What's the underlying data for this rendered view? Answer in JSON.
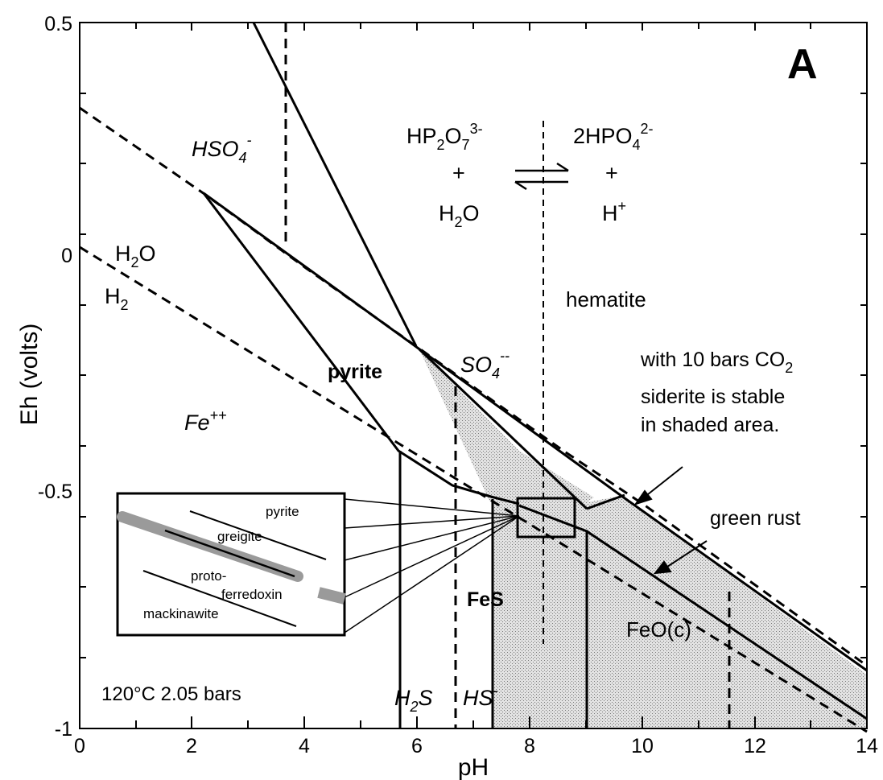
{
  "panel_letter": "A",
  "axes": {
    "x_label": "pH",
    "y_label": "Eh (volts)",
    "x_ticks": [
      "0",
      "2",
      "4",
      "6",
      "8",
      "10",
      "12",
      "14"
    ],
    "y_ticks": [
      "0.5",
      "0",
      "-0.5",
      "-1"
    ]
  },
  "species": {
    "hso4": "HSO",
    "hso4_sub": "4",
    "hso4_sup": "-",
    "so4": "SO",
    "so4_sub": "4",
    "so4_sup": "--",
    "h2o_a": "H",
    "h2o_sub": "2",
    "h2o_b": "O",
    "h2_a": "H",
    "h2_sub": "2",
    "fe": "Fe",
    "fe_sup": "++",
    "pyrite": "pyrite",
    "hematite": "hematite",
    "fes": "FeS",
    "feo": "FeO(c)",
    "h2s_a": "H",
    "h2s_sub": "2",
    "h2s_b": "S",
    "hs": "HS",
    "hs_sup": "-"
  },
  "equilibrium": {
    "left_a": "HP",
    "left_sub1": "2",
    "left_b": "O",
    "left_sub2": "7",
    "left_sup": "3-",
    "left_plus": "+",
    "left_water_a": "H",
    "left_water_sub": "2",
    "left_water_b": "O",
    "right_a": "2HPO",
    "right_sub": "4",
    "right_sup": "2-",
    "right_plus": "+",
    "right_h": "H",
    "right_h_sup": "+"
  },
  "annotations": {
    "co2_line1_a": "with 10 bars CO",
    "co2_line1_sub": "2",
    "co2_line2": "siderite is stable",
    "co2_line3": "in shaded area.",
    "green_rust": "green rust",
    "conditions": "120°C  2.05 bars"
  },
  "inset": {
    "pyrite": "pyrite",
    "greigite": "greigite",
    "proto": "proto-",
    "ferredoxin": "ferredoxin",
    "mackinawite": "mackinawite"
  },
  "chart_data": {
    "type": "phase-diagram",
    "xlim": [
      0,
      14
    ],
    "ylim": [
      -1,
      0.5
    ],
    "solid_lines": [
      {
        "name": "hematite-left",
        "x": [
          3.1,
          6.0
        ],
        "y": [
          0.5,
          -0.19
        ]
      },
      {
        "name": "hematite-pyrite",
        "x": [
          2.2,
          6.0,
          9.8,
          14
        ],
        "y": [
          0.13,
          -0.19,
          -0.56,
          -0.88
        ]
      },
      {
        "name": "pyrite-fe",
        "x": [
          2.2,
          5.7,
          6.5,
          7.3,
          7.8
        ],
        "y": [
          0.13,
          -0.41,
          -0.47,
          -0.51,
          -0.53
        ]
      },
      {
        "name": "pyrite-fes",
        "x": [
          7.8,
          9.0,
          14
        ],
        "y": [
          -0.53,
          -0.58,
          -0.98
        ]
      },
      {
        "name": "fes-hematite",
        "x": [
          6.0,
          9.0
        ],
        "y": [
          -0.19,
          -0.55
        ]
      },
      {
        "name": "siderite",
        "x": [
          9.0,
          9.8
        ],
        "y": [
          -0.58,
          -0.56
        ]
      },
      {
        "name": "v-5.7",
        "x": [
          5.7,
          5.7
        ],
        "y": [
          -0.41,
          -1
        ]
      },
      {
        "name": "v-7.4",
        "x": [
          7.4,
          7.4
        ],
        "y": [
          -0.51,
          -1
        ]
      },
      {
        "name": "v-9.0",
        "x": [
          9.0,
          9.0
        ],
        "y": [
          -0.58,
          -1
        ]
      }
    ],
    "dashed_lines": [
      {
        "name": "H2O-O2",
        "x": [
          0,
          2.2,
          6.0,
          14
        ],
        "y": [
          0.31,
          0.13,
          -0.18,
          -0.85
        ]
      },
      {
        "name": "H2-H2O",
        "x": [
          0,
          14
        ],
        "y": [
          0.01,
          -1.02
        ]
      },
      {
        "name": "HSO4-SO4",
        "x": [
          3.7,
          3.7
        ],
        "y": [
          0.5,
          0
        ]
      },
      {
        "name": "H2S-HS",
        "x": [
          6.7,
          6.7
        ],
        "y": [
          -0.29,
          -1
        ]
      },
      {
        "name": "P-equilibrium",
        "x": [
          8.2,
          8.2
        ],
        "y": [
          0.23,
          -0.82
        ]
      },
      {
        "name": "right-vertical",
        "x": [
          11.6,
          11.6
        ],
        "y": [
          -0.72,
          -1
        ]
      }
    ]
  }
}
